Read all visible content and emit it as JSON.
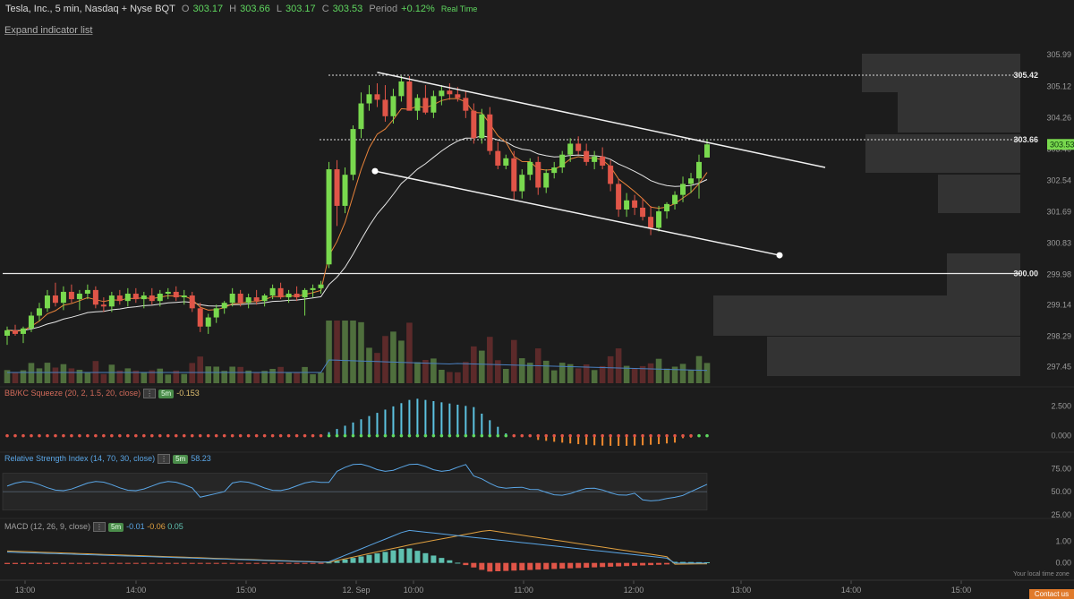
{
  "header": {
    "symbol": "Tesla, Inc., 5 min, Nasdaq + Nyse BQT",
    "o_label": "O",
    "o_value": "303.17",
    "h_label": "H",
    "h_value": "303.66",
    "l_label": "L",
    "l_value": "303.17",
    "c_label": "C",
    "c_value": "303.53",
    "period_label": "Period",
    "period_value": "+0.12%",
    "status": "Real Time"
  },
  "expand_link": "Expand indicator list",
  "footer": {
    "timezone_link": "Your local time zone",
    "contact": "Contact us"
  },
  "colors": {
    "bg": "#1c1c1c",
    "up": "#79d94e",
    "down": "#e05548",
    "ema": "#e8833a",
    "sma": "#e6e6e6",
    "trendline": "#f0f0f0",
    "vol_up": "#4f6f3d",
    "vol_down": "#5c2a2a",
    "squeeze_pos": "#5cc2e0",
    "squeeze_neg": "#f08a2e",
    "rsi": "#5aa6e6",
    "macd": "#5aa6e6",
    "signal": "#e0a040",
    "hist_pos": "#5fc0b0",
    "hist_neg": "#e05548",
    "price_tag": "#79d94e"
  },
  "chart_data": [
    {
      "type": "candlestick",
      "title": "Tesla, Inc., 5 min, Nasdaq + Nyse BQT",
      "x_ticks": [
        "13:00",
        "14:00",
        "15:00",
        "12. Sep",
        "10:00",
        "11:00",
        "12:00",
        "13:00",
        "14:00",
        "15:00"
      ],
      "y_ticks": [
        "305.99",
        "305.12",
        "304.26",
        "303.40",
        "302.54",
        "301.69",
        "300.83",
        "299.98",
        "299.14",
        "298.29",
        "297.45"
      ],
      "ylim": [
        297.1,
        306.4
      ],
      "price_levels": [
        {
          "label": "305.42",
          "value": 305.42
        },
        {
          "label": "303.66",
          "value": 303.66
        },
        {
          "label": "300.00",
          "value": 300.0
        }
      ],
      "last_price": {
        "label": "303.53",
        "value": 303.53
      },
      "candles_ohlc": [
        [
          298.3,
          298.55,
          298.05,
          298.45
        ],
        [
          298.45,
          298.6,
          298.3,
          298.35
        ],
        [
          298.35,
          298.55,
          298.1,
          298.5
        ],
        [
          298.5,
          298.95,
          298.4,
          298.85
        ],
        [
          298.85,
          299.2,
          298.7,
          299.05
        ],
        [
          299.05,
          299.55,
          298.95,
          299.4
        ],
        [
          299.4,
          299.75,
          299.1,
          299.2
        ],
        [
          299.2,
          299.65,
          299.0,
          299.5
        ],
        [
          299.5,
          299.7,
          299.2,
          299.3
        ],
        [
          299.3,
          299.55,
          299.0,
          299.45
        ],
        [
          299.45,
          299.7,
          299.3,
          299.55
        ],
        [
          299.55,
          299.65,
          299.05,
          299.15
        ],
        [
          299.15,
          299.35,
          298.95,
          299.1
        ],
        [
          299.1,
          299.5,
          298.95,
          299.4
        ],
        [
          299.4,
          299.55,
          299.15,
          299.25
        ],
        [
          299.25,
          299.6,
          299.1,
          299.45
        ],
        [
          299.45,
          299.6,
          299.2,
          299.3
        ],
        [
          299.3,
          299.5,
          299.05,
          299.4
        ],
        [
          299.4,
          299.6,
          299.15,
          299.25
        ],
        [
          299.25,
          299.55,
          299.1,
          299.45
        ],
        [
          299.45,
          299.6,
          299.3,
          299.5
        ],
        [
          299.5,
          299.65,
          299.25,
          299.35
        ],
        [
          299.35,
          299.55,
          299.15,
          299.4
        ],
        [
          299.4,
          299.5,
          298.95,
          299.05
        ],
        [
          299.05,
          299.2,
          298.4,
          298.55
        ],
        [
          298.55,
          298.9,
          298.35,
          298.8
        ],
        [
          298.8,
          299.15,
          298.65,
          299.05
        ],
        [
          299.05,
          299.25,
          298.9,
          299.2
        ],
        [
          299.2,
          299.6,
          299.1,
          299.45
        ],
        [
          299.45,
          299.55,
          299.1,
          299.2
        ],
        [
          299.2,
          299.45,
          299.05,
          299.35
        ],
        [
          299.35,
          299.55,
          299.15,
          299.25
        ],
        [
          299.25,
          299.45,
          299.1,
          299.4
        ],
        [
          299.4,
          299.7,
          299.3,
          299.6
        ],
        [
          299.6,
          299.75,
          299.3,
          299.35
        ],
        [
          299.35,
          299.55,
          299.2,
          299.45
        ],
        [
          299.45,
          299.65,
          299.25,
          299.35
        ],
        [
          299.35,
          299.6,
          298.85,
          299.55
        ],
        [
          299.55,
          299.7,
          299.35,
          299.6
        ],
        [
          299.6,
          299.8,
          299.45,
          299.7
        ],
        [
          300.25,
          303.05,
          300.15,
          302.85
        ],
        [
          302.85,
          303.1,
          301.3,
          301.85
        ],
        [
          301.85,
          302.9,
          301.65,
          302.7
        ],
        [
          302.7,
          304.05,
          302.55,
          303.95
        ],
        [
          303.95,
          304.95,
          303.7,
          304.65
        ],
        [
          304.65,
          305.15,
          304.45,
          304.9
        ],
        [
          304.9,
          305.2,
          304.55,
          304.75
        ],
        [
          304.75,
          305.15,
          304.15,
          304.3
        ],
        [
          304.3,
          305.05,
          304.1,
          304.85
        ],
        [
          304.85,
          305.4,
          304.7,
          305.25
        ],
        [
          305.25,
          305.4,
          304.85,
          304.45
        ],
        [
          304.45,
          304.9,
          304.2,
          304.8
        ],
        [
          304.8,
          305.15,
          304.35,
          304.4
        ],
        [
          304.4,
          305.0,
          304.25,
          304.85
        ],
        [
          304.85,
          305.15,
          304.6,
          305.0
        ],
        [
          305.0,
          305.2,
          304.75,
          304.9
        ],
        [
          304.9,
          305.1,
          304.7,
          304.8
        ],
        [
          304.8,
          305.0,
          304.25,
          304.45
        ],
        [
          304.45,
          304.65,
          303.55,
          303.7
        ],
        [
          303.7,
          304.5,
          303.55,
          304.35
        ],
        [
          304.35,
          304.55,
          303.25,
          303.35
        ],
        [
          303.35,
          303.6,
          302.85,
          302.95
        ],
        [
          302.95,
          303.25,
          302.85,
          303.15
        ],
        [
          303.15,
          303.35,
          302.0,
          302.25
        ],
        [
          302.25,
          302.85,
          302.05,
          302.7
        ],
        [
          302.7,
          303.15,
          302.55,
          303.05
        ],
        [
          303.05,
          303.2,
          302.15,
          302.35
        ],
        [
          302.35,
          302.85,
          302.2,
          302.75
        ],
        [
          302.75,
          303.05,
          302.6,
          302.9
        ],
        [
          302.9,
          303.35,
          302.75,
          303.25
        ],
        [
          303.25,
          303.7,
          303.05,
          303.55
        ],
        [
          303.55,
          303.75,
          303.25,
          303.35
        ],
        [
          303.35,
          303.55,
          302.95,
          303.05
        ],
        [
          303.05,
          303.35,
          302.85,
          303.2
        ],
        [
          303.2,
          303.45,
          302.85,
          302.95
        ],
        [
          302.95,
          303.1,
          302.25,
          302.45
        ],
        [
          302.45,
          302.6,
          301.55,
          301.75
        ],
        [
          301.75,
          302.2,
          301.55,
          302.0
        ],
        [
          302.0,
          302.15,
          301.6,
          301.8
        ],
        [
          301.8,
          302.05,
          301.45,
          301.55
        ],
        [
          301.55,
          301.85,
          301.05,
          301.25
        ],
        [
          301.25,
          301.85,
          301.15,
          301.7
        ],
        [
          301.7,
          301.95,
          301.5,
          301.9
        ],
        [
          301.9,
          302.25,
          301.75,
          302.15
        ],
        [
          302.15,
          302.65,
          301.95,
          302.45
        ],
        [
          302.45,
          302.75,
          302.2,
          302.6
        ],
        [
          302.6,
          303.25,
          302.05,
          303.05
        ],
        [
          303.17,
          303.66,
          303.17,
          303.53
        ]
      ]
    },
    {
      "type": "bar",
      "title": "BB/KC Squeeze (20, 2, 1.5, 20, close)",
      "timeframe": "5m",
      "value": "-0.153",
      "y_ticks": [
        "2.500",
        "0.000"
      ],
      "ylim": [
        -1.0,
        3.2
      ]
    },
    {
      "type": "line",
      "title": "Relative Strength Index (14, 70, 30, close)",
      "timeframe": "5m",
      "value": "58.23",
      "y_ticks": [
        "75.00",
        "50.00",
        "25.00"
      ],
      "ylim": [
        22,
        86
      ]
    },
    {
      "type": "line",
      "title": "MACD (12, 26, 9, close)",
      "timeframe": "5m",
      "macd_value": "-0.01",
      "signal_value": "-0.06",
      "hist_value": "0.05",
      "y_ticks": [
        "1.00",
        "0.00"
      ],
      "ylim": [
        -0.55,
        1.6
      ]
    }
  ]
}
